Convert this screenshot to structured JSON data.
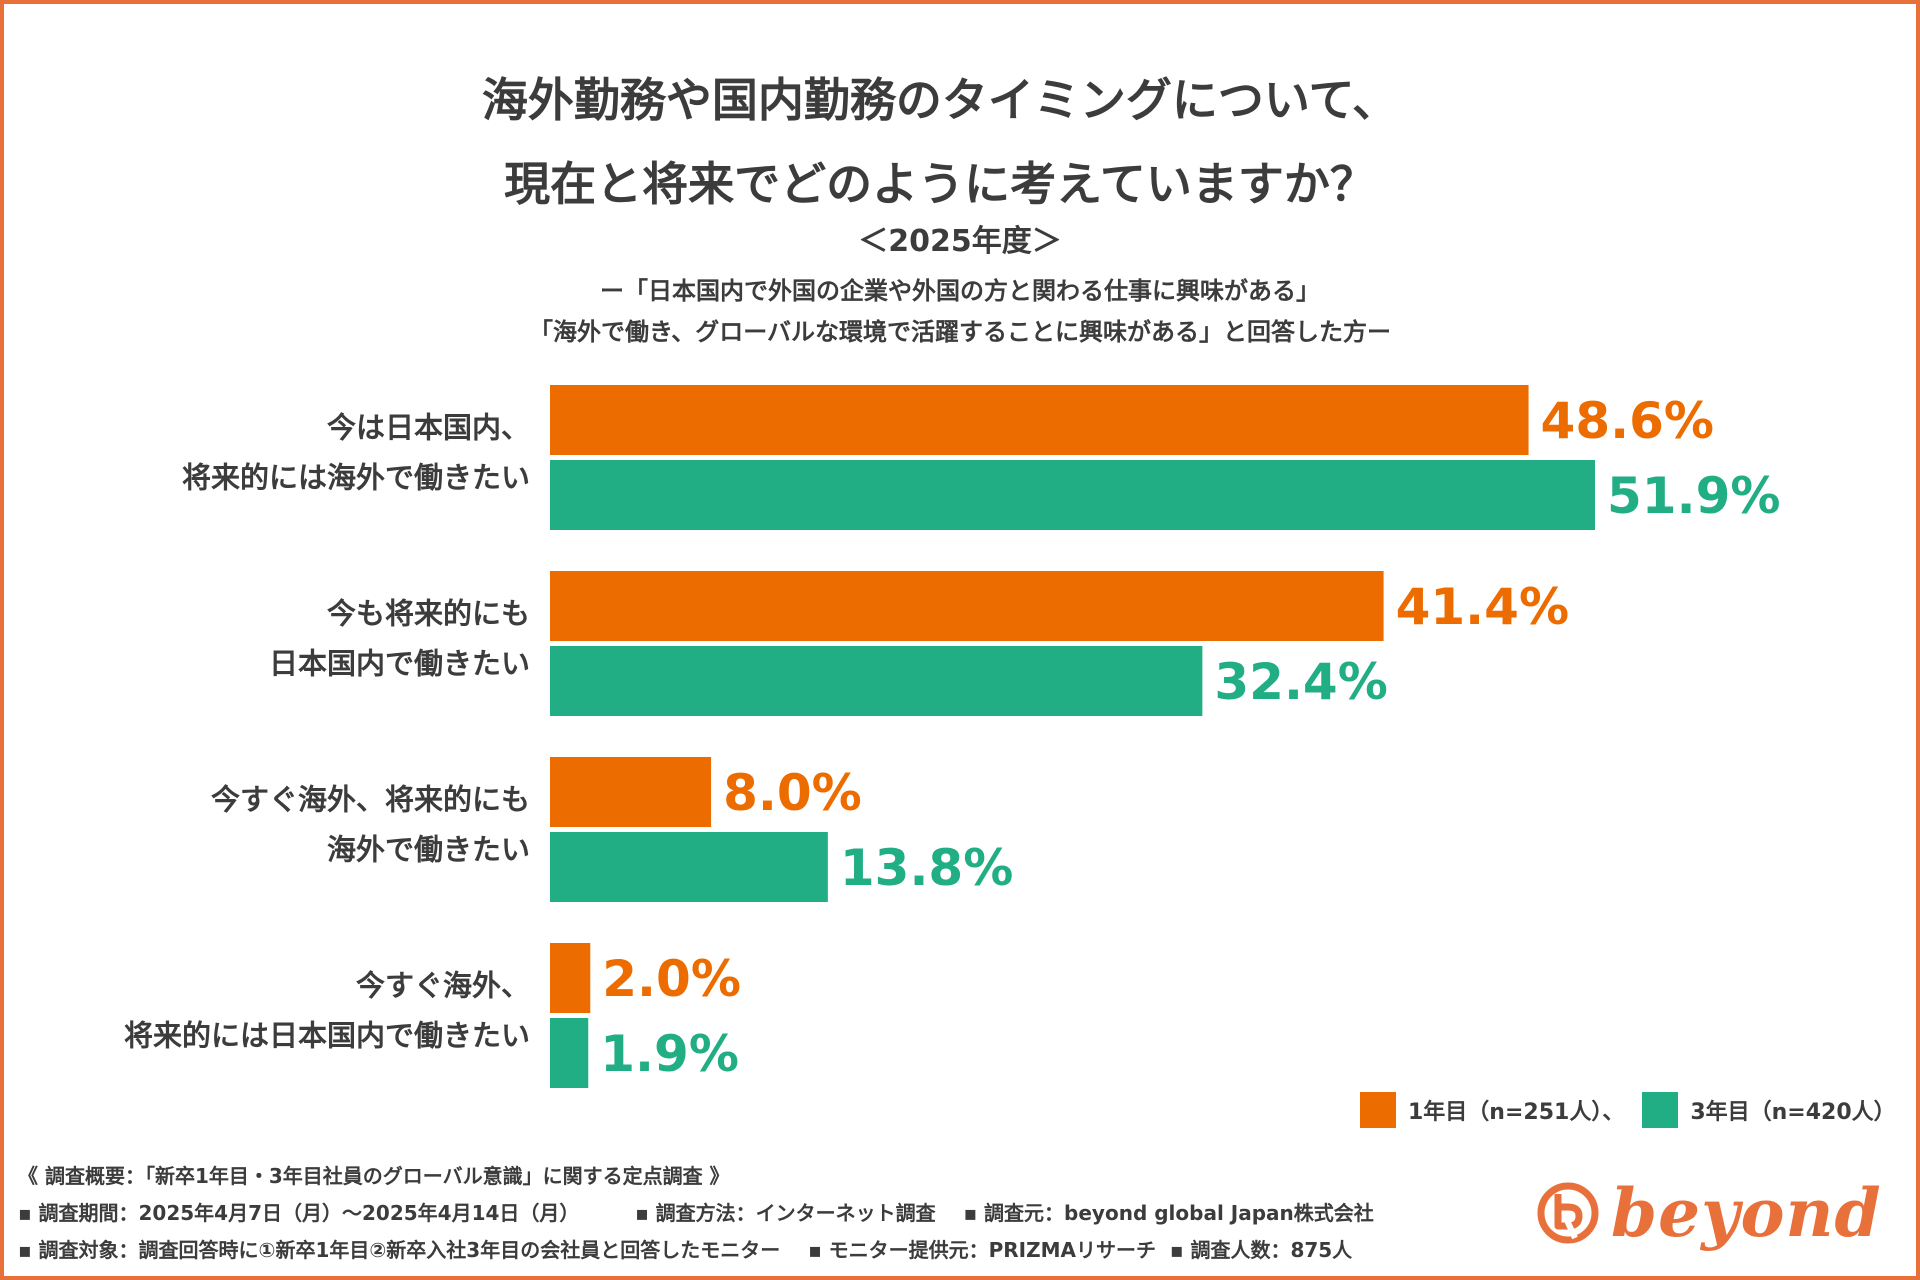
{
  "header": {
    "title_line1": "海外勤務や国内勤務のタイミングについて、",
    "title_line2": "現在と将来でどのように考えていますか？",
    "year": "＜2025年度＞",
    "condition_line1": "ー「日本国内で外国の企業や外国の方と関わる仕事に興味がある」",
    "condition_line2": "「海外で働き、グローバルな環境で活躍することに興味がある」と回答した方ー"
  },
  "chart_data": {
    "type": "bar",
    "orientation": "horizontal",
    "categories": [
      [
        "今は日本国内、",
        "将来的には海外で働きたい"
      ],
      [
        "今も将来的にも",
        "日本国内で働きたい"
      ],
      [
        "今すぐ海外、将来的にも",
        "海外で働きたい"
      ],
      [
        "今すぐ海外、",
        "将来的には日本国内で働きたい"
      ]
    ],
    "series": [
      {
        "name": "1年目（n=251人）、",
        "color": "#ec6c00",
        "values": [
          48.6,
          41.4,
          8.0,
          2.0
        ],
        "labels": [
          "48.6%",
          "41.4%",
          "8.0%",
          "2.0%"
        ]
      },
      {
        "name": "3年目（n=420人）",
        "color": "#22ae85",
        "values": [
          51.9,
          32.4,
          13.8,
          1.9
        ],
        "labels": [
          "51.9%",
          "32.4%",
          "13.8%",
          "1.9%"
        ]
      }
    ],
    "unit": "%",
    "xlim": [
      0,
      100
    ],
    "grid": false,
    "legend_position": "bottom-right"
  },
  "legend": {
    "items": [
      {
        "label": "1年目（n=251人）、",
        "color": "#ec6c00"
      },
      {
        "label": "3年目（n=420人）",
        "color": "#22ae85"
      }
    ]
  },
  "footnotes": {
    "line1": "《 調査概要：「新卒1年目・3年目社員のグローバル意識」に関する定点調査 》",
    "line2": [
      "▪ 調査期間：2025年4月7日（月）〜2025年4月14日（月）",
      "▪ 調査方法：インターネット調査",
      "▪ 調査元：beyond global Japan株式会社"
    ],
    "line3": [
      "▪ 調査対象：調査回答時に①新卒1年目②新卒入社3年目の会社員と回答したモニター",
      "▪ モニター提供元：PRIZMAリサーチ",
      "▪ 調査人数：875人"
    ]
  },
  "logo": {
    "text": "beyond",
    "color": "#e8703a"
  }
}
